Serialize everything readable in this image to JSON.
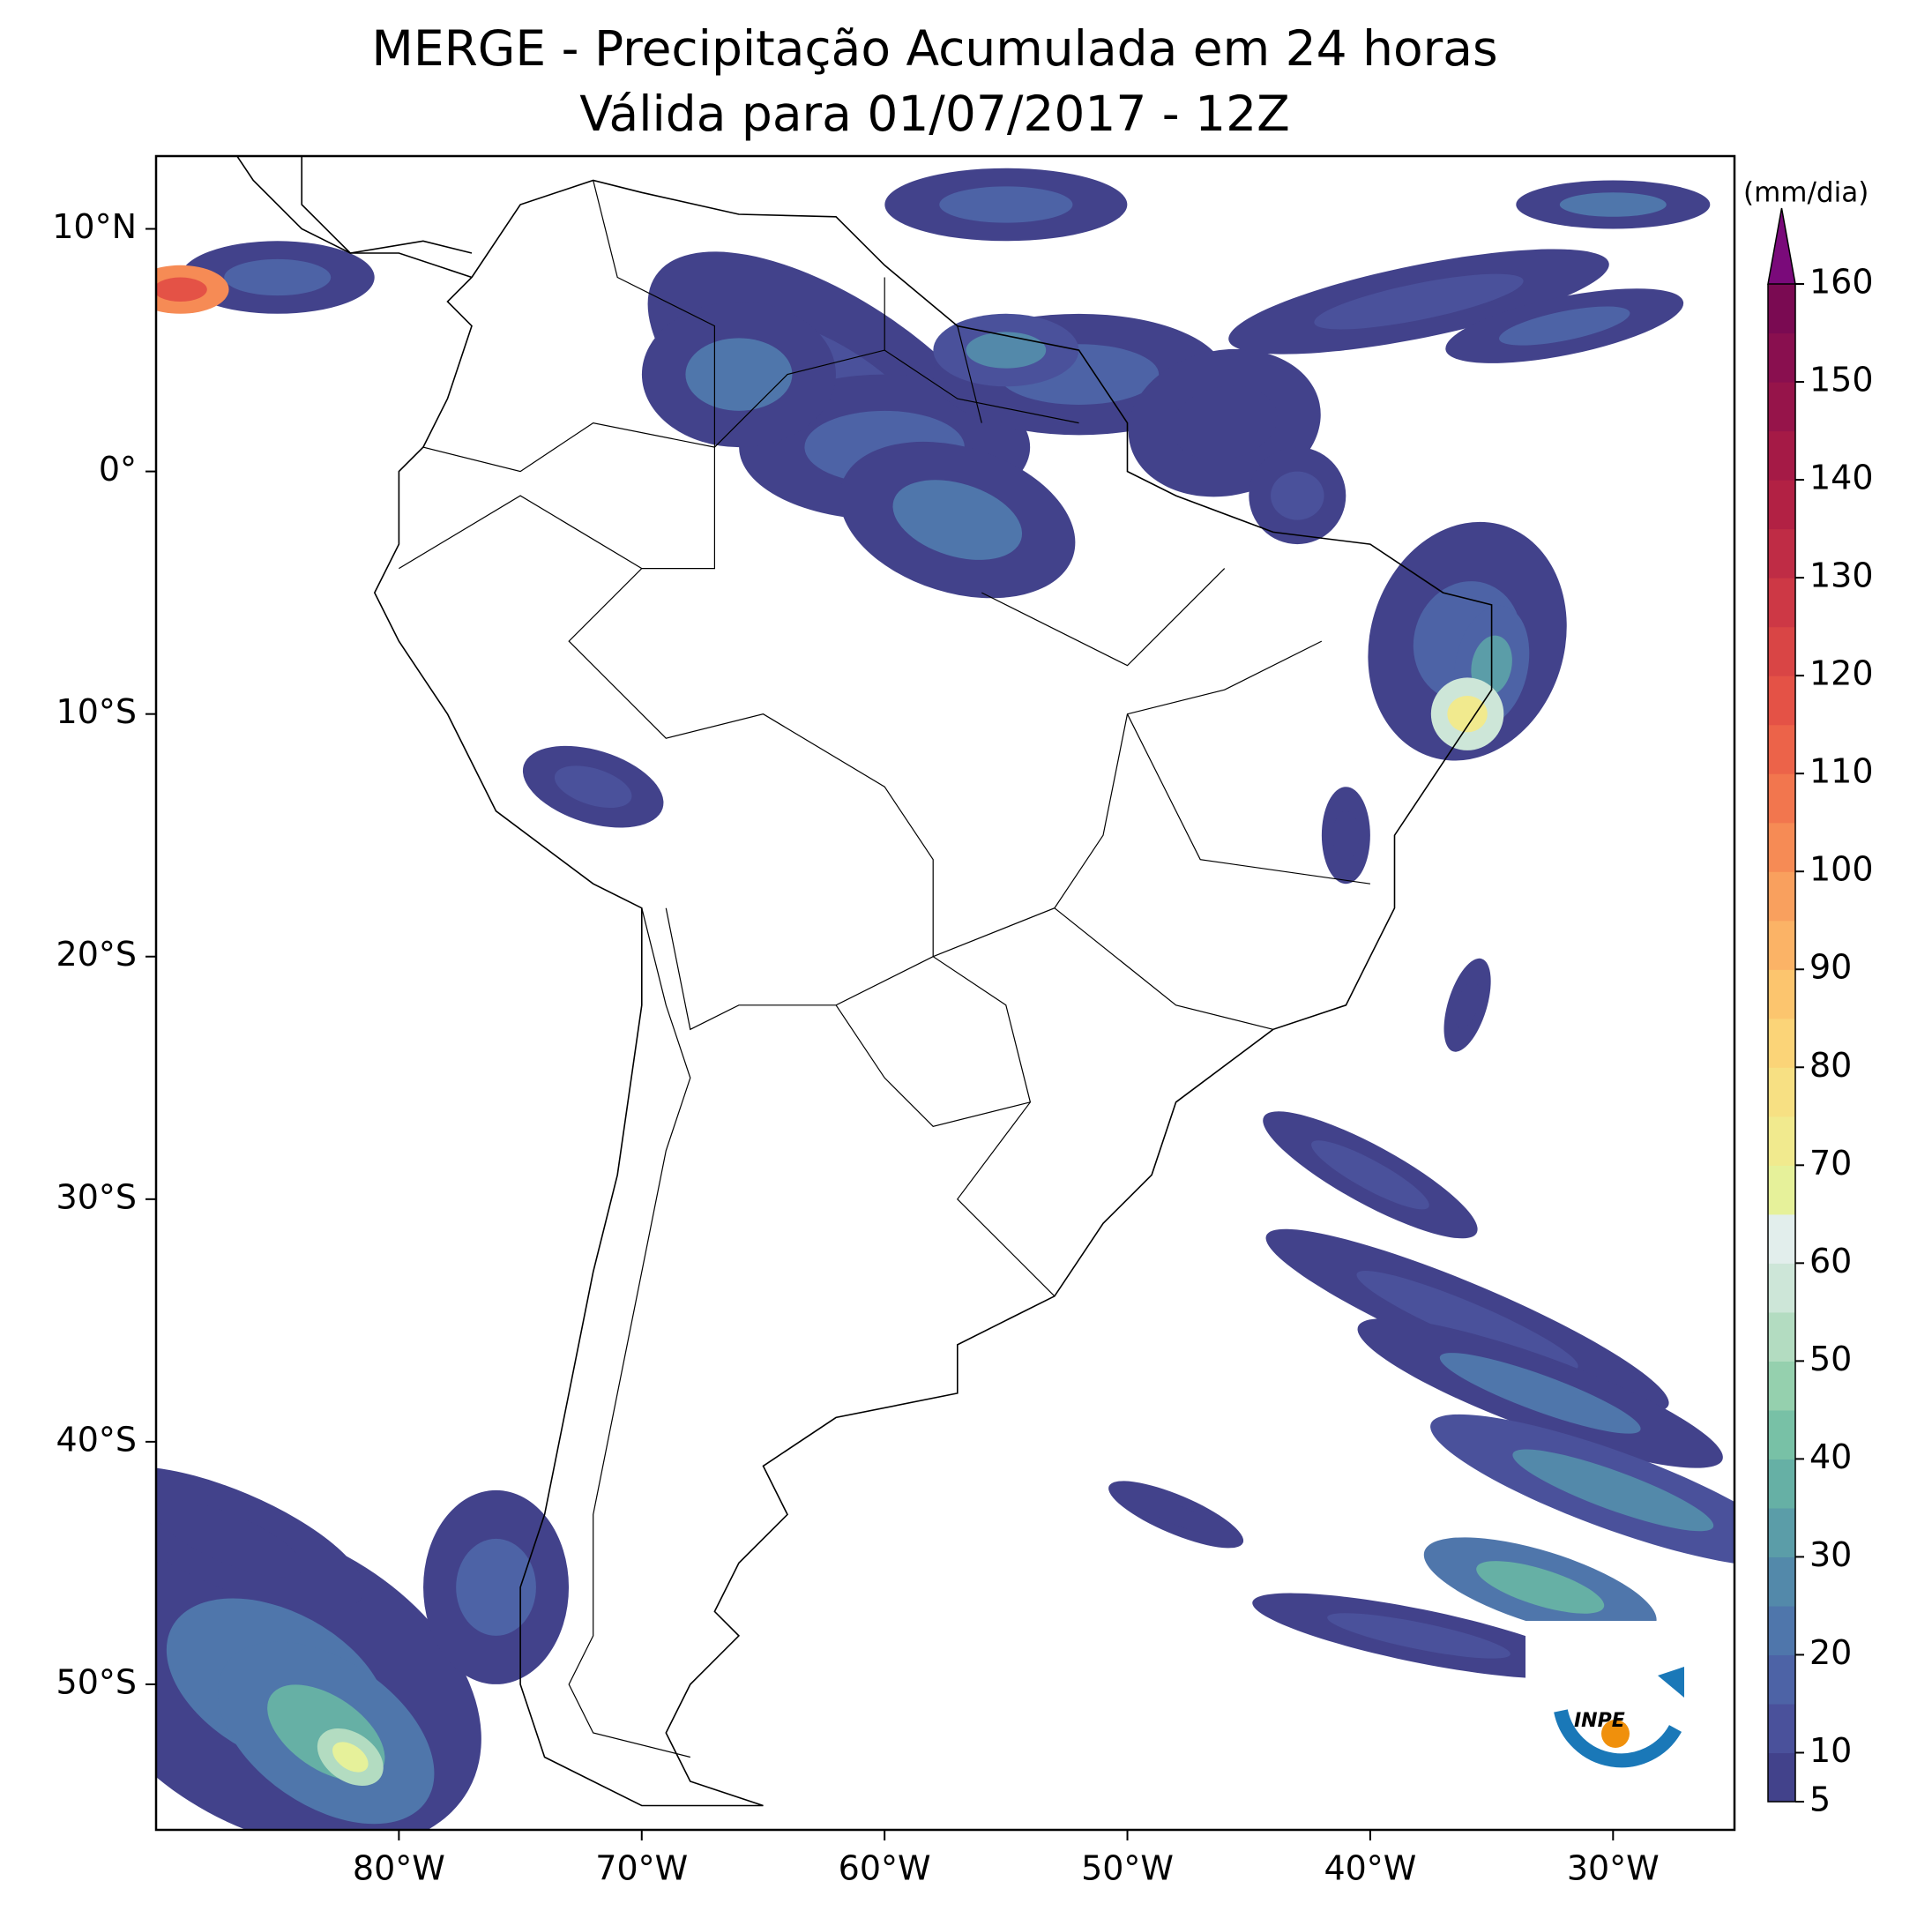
{
  "chart_data": {
    "type": "map",
    "title": "MERGE - Precipitação Acumulada em 24 horas",
    "subtitle": "Válida para 01/07/2017 - 12Z",
    "xlim": [
      -90,
      -25
    ],
    "ylim": [
      -56,
      13
    ],
    "xticks": [
      {
        "value": -80,
        "label": "80°W"
      },
      {
        "value": -70,
        "label": "70°W"
      },
      {
        "value": -60,
        "label": "60°W"
      },
      {
        "value": -50,
        "label": "50°W"
      },
      {
        "value": -40,
        "label": "40°W"
      },
      {
        "value": -30,
        "label": "30°W"
      }
    ],
    "yticks": [
      {
        "value": 10,
        "label": "10°N"
      },
      {
        "value": 0,
        "label": "0°"
      },
      {
        "value": -10,
        "label": "10°S"
      },
      {
        "value": -20,
        "label": "20°S"
      },
      {
        "value": -30,
        "label": "30°S"
      },
      {
        "value": -40,
        "label": "40°S"
      },
      {
        "value": -50,
        "label": "50°S"
      }
    ],
    "colorbar": {
      "label": "(mm/dia)",
      "clim": [
        5,
        160
      ],
      "ticks": [
        5,
        10,
        20,
        30,
        40,
        50,
        60,
        70,
        80,
        90,
        100,
        110,
        120,
        130,
        140,
        150,
        160
      ],
      "colors": [
        "#42428b",
        "#4a519b",
        "#4d63a6",
        "#4f76ab",
        "#5389aa",
        "#5b9da8",
        "#66b0a5",
        "#78c1a6",
        "#95d0ae",
        "#b3dcc1",
        "#cde6d8",
        "#e2eeec",
        "#e6f19a",
        "#f1ea8e",
        "#f7e083",
        "#fbd478",
        "#fcc56e",
        "#fbb366",
        "#f9a05e",
        "#f68b55",
        "#f2764e",
        "#ec6349",
        "#e45246",
        "#d94545",
        "#cd3845",
        "#bf2c45",
        "#b22144",
        "#a51a46",
        "#96144a",
        "#890f4f",
        "#7a0a52"
      ],
      "extend_color": "#7a0a7a"
    },
    "logo": "INPE"
  }
}
